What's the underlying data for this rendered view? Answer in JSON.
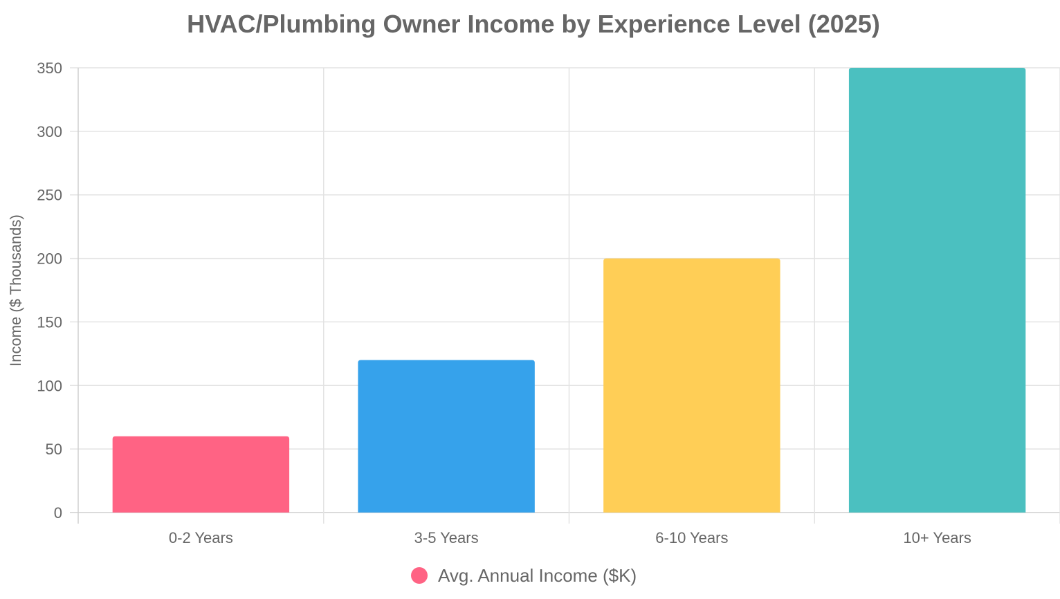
{
  "chart_data": {
    "type": "bar",
    "title": "HVAC/Plumbing Owner Income by Experience Level (2025)",
    "xlabel": "",
    "ylabel": "Income ($ Thousands)",
    "categories": [
      "0-2 Years",
      "3-5 Years",
      "6-10 Years",
      "10+ Years"
    ],
    "series": [
      {
        "name": "Avg. Annual Income ($K)",
        "values": [
          60,
          120,
          200,
          350
        ],
        "colors": [
          "#ff6384",
          "#36a2eb",
          "#ffce56",
          "#4bc0c0"
        ]
      }
    ],
    "ylim": [
      0,
      350
    ],
    "yticks": [
      0,
      50,
      100,
      150,
      200,
      250,
      300,
      350
    ],
    "grid": true,
    "legend_position": "bottom"
  }
}
